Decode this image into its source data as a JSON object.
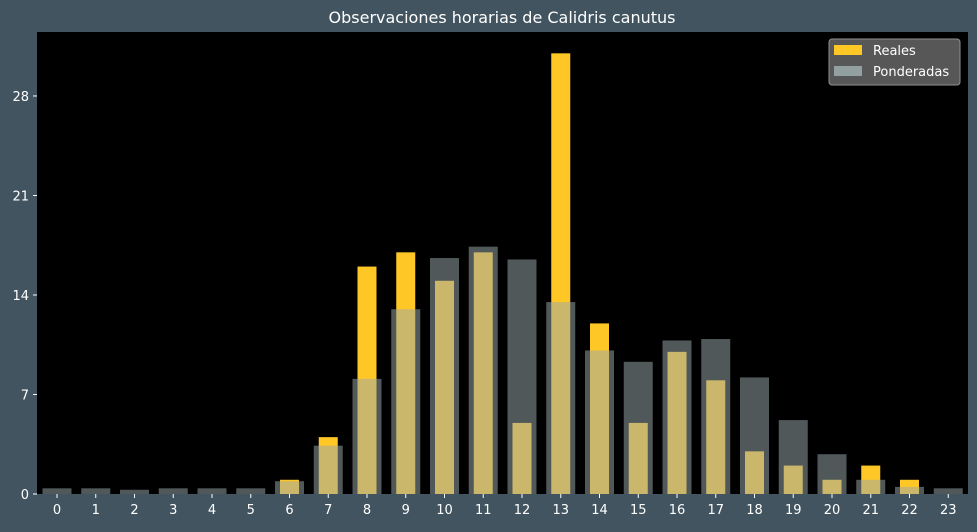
{
  "chart_data": {
    "type": "bar",
    "title": "Observaciones horarias de Calidris canutus",
    "xlabel": "",
    "ylabel": "",
    "categories": [
      "0",
      "1",
      "2",
      "3",
      "4",
      "5",
      "6",
      "7",
      "8",
      "9",
      "10",
      "11",
      "12",
      "13",
      "14",
      "15",
      "16",
      "17",
      "18",
      "19",
      "20",
      "21",
      "22",
      "23"
    ],
    "series": [
      {
        "name": "Reales",
        "color": "#ffc726",
        "values": [
          0,
          0,
          0,
          0,
          0,
          0,
          1,
          4,
          16,
          17,
          15,
          17,
          5,
          31,
          12,
          5,
          10,
          8,
          3,
          2,
          1,
          2,
          1,
          0
        ]
      },
      {
        "name": "Ponderadas",
        "color": "#9aa9ab",
        "values": [
          0.4,
          0.4,
          0.3,
          0.4,
          0.4,
          0.4,
          0.9,
          3.4,
          8.1,
          13.0,
          16.6,
          17.4,
          16.5,
          13.5,
          10.1,
          9.3,
          10.8,
          10.9,
          8.2,
          5.2,
          2.8,
          1.0,
          0.5,
          0.4
        ]
      }
    ],
    "yticks": [
      0,
      7,
      14,
      21,
      28
    ],
    "ylim": [
      0,
      32.5
    ],
    "legend_position": "top-right",
    "grid": false,
    "background": "#000000",
    "figure_background": "#41545f",
    "text_color": "#ffffff"
  }
}
